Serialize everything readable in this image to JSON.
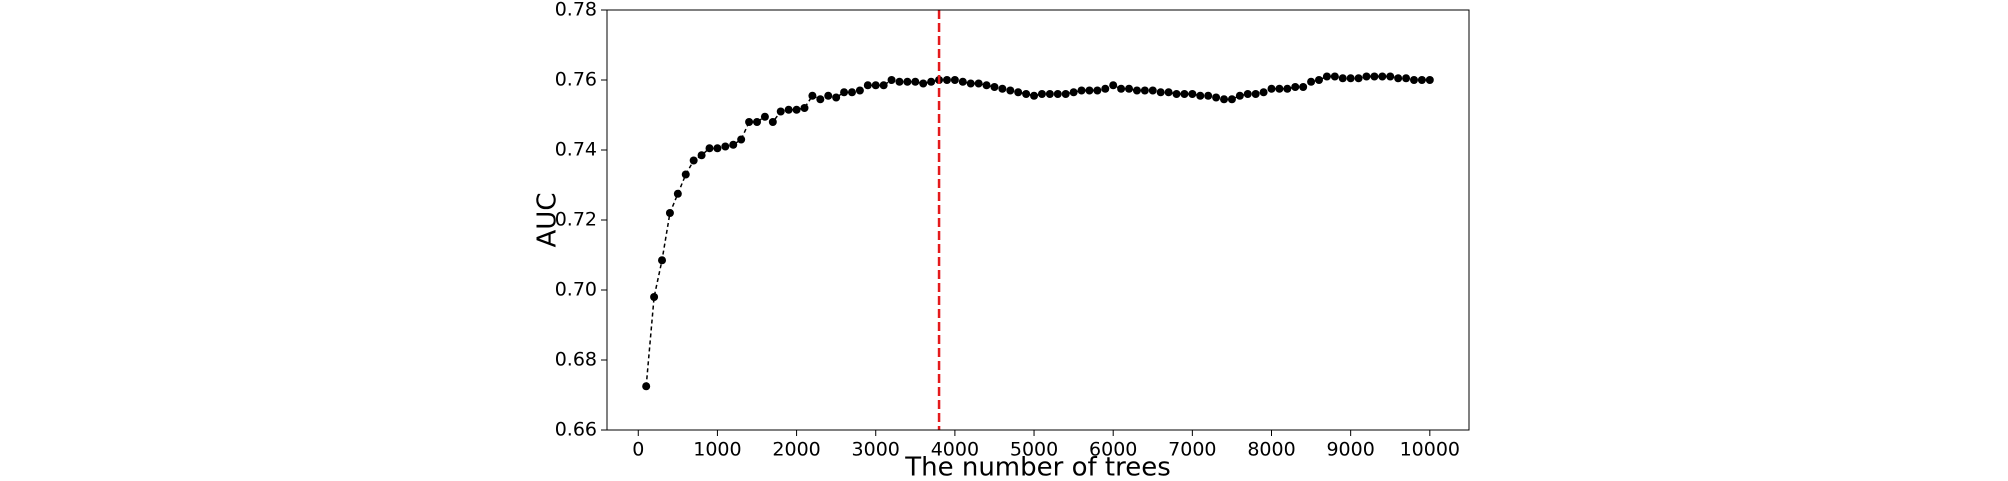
{
  "chart_data": {
    "type": "line",
    "xlabel": "The number of trees",
    "ylabel": "AUC",
    "x": [
      100,
      200,
      300,
      400,
      500,
      600,
      700,
      800,
      900,
      1000,
      1100,
      1200,
      1300,
      1400,
      1500,
      1600,
      1700,
      1800,
      1900,
      2000,
      2100,
      2200,
      2300,
      2400,
      2500,
      2600,
      2700,
      2800,
      2900,
      3000,
      3100,
      3200,
      3300,
      3400,
      3500,
      3600,
      3700,
      3800,
      3900,
      4000,
      4100,
      4200,
      4300,
      4400,
      4500,
      4600,
      4700,
      4800,
      4900,
      5000,
      5100,
      5200,
      5300,
      5400,
      5500,
      5600,
      5700,
      5800,
      5900,
      6000,
      6100,
      6200,
      6300,
      6400,
      6500,
      6600,
      6700,
      6800,
      6900,
      7000,
      7100,
      7200,
      7300,
      7400,
      7500,
      7600,
      7700,
      7800,
      7900,
      8000,
      8100,
      8200,
      8300,
      8400,
      8500,
      8600,
      8700,
      8800,
      8900,
      9000,
      9100,
      9200,
      9300,
      9400,
      9500,
      9600,
      9700,
      9800,
      9900,
      10000
    ],
    "series": [
      {
        "color": "#000000",
        "values": [
          0.6725,
          0.698,
          0.7085,
          0.722,
          0.7275,
          0.733,
          0.737,
          0.7385,
          0.7405,
          0.7405,
          0.741,
          0.7415,
          0.743,
          0.748,
          0.748,
          0.7495,
          0.748,
          0.751,
          0.7515,
          0.7515,
          0.752,
          0.7555,
          0.7545,
          0.7555,
          0.755,
          0.7565,
          0.7565,
          0.757,
          0.7585,
          0.7585,
          0.7585,
          0.76,
          0.7595,
          0.7595,
          0.7595,
          0.759,
          0.7595,
          0.76,
          0.76,
          0.76,
          0.7595,
          0.759,
          0.759,
          0.7585,
          0.758,
          0.7575,
          0.757,
          0.7565,
          0.756,
          0.7555,
          0.756,
          0.756,
          0.756,
          0.756,
          0.7565,
          0.757,
          0.757,
          0.757,
          0.7575,
          0.7585,
          0.7575,
          0.7575,
          0.757,
          0.757,
          0.757,
          0.7565,
          0.7565,
          0.756,
          0.756,
          0.756,
          0.7555,
          0.7555,
          0.755,
          0.7545,
          0.7545,
          0.7555,
          0.756,
          0.756,
          0.7565,
          0.7575,
          0.7575,
          0.7575,
          0.758,
          0.758,
          0.7595,
          0.76,
          0.761,
          0.761,
          0.7605,
          0.7605,
          0.7605,
          0.761,
          0.761,
          0.761,
          0.761,
          0.7605,
          0.7605,
          0.76,
          0.76,
          0.76
        ]
      }
    ],
    "vline": 3800,
    "vline_color": "#e41a1c",
    "xlim": [
      -395,
      10495
    ],
    "xticks": [
      0,
      1000,
      2000,
      3000,
      4000,
      5000,
      6000,
      7000,
      8000,
      9000,
      10000
    ],
    "ylim": [
      0.66,
      0.78
    ],
    "yticks": [
      {
        "value": 0.66,
        "label": "0.66"
      },
      {
        "value": 0.68,
        "label": "0.68"
      },
      {
        "value": 0.7,
        "label": "0.70"
      },
      {
        "value": 0.72,
        "label": "0.72"
      },
      {
        "value": 0.74,
        "label": "0.74"
      },
      {
        "value": 0.76,
        "label": "0.76"
      },
      {
        "value": 0.78,
        "label": "0.78"
      }
    ]
  }
}
